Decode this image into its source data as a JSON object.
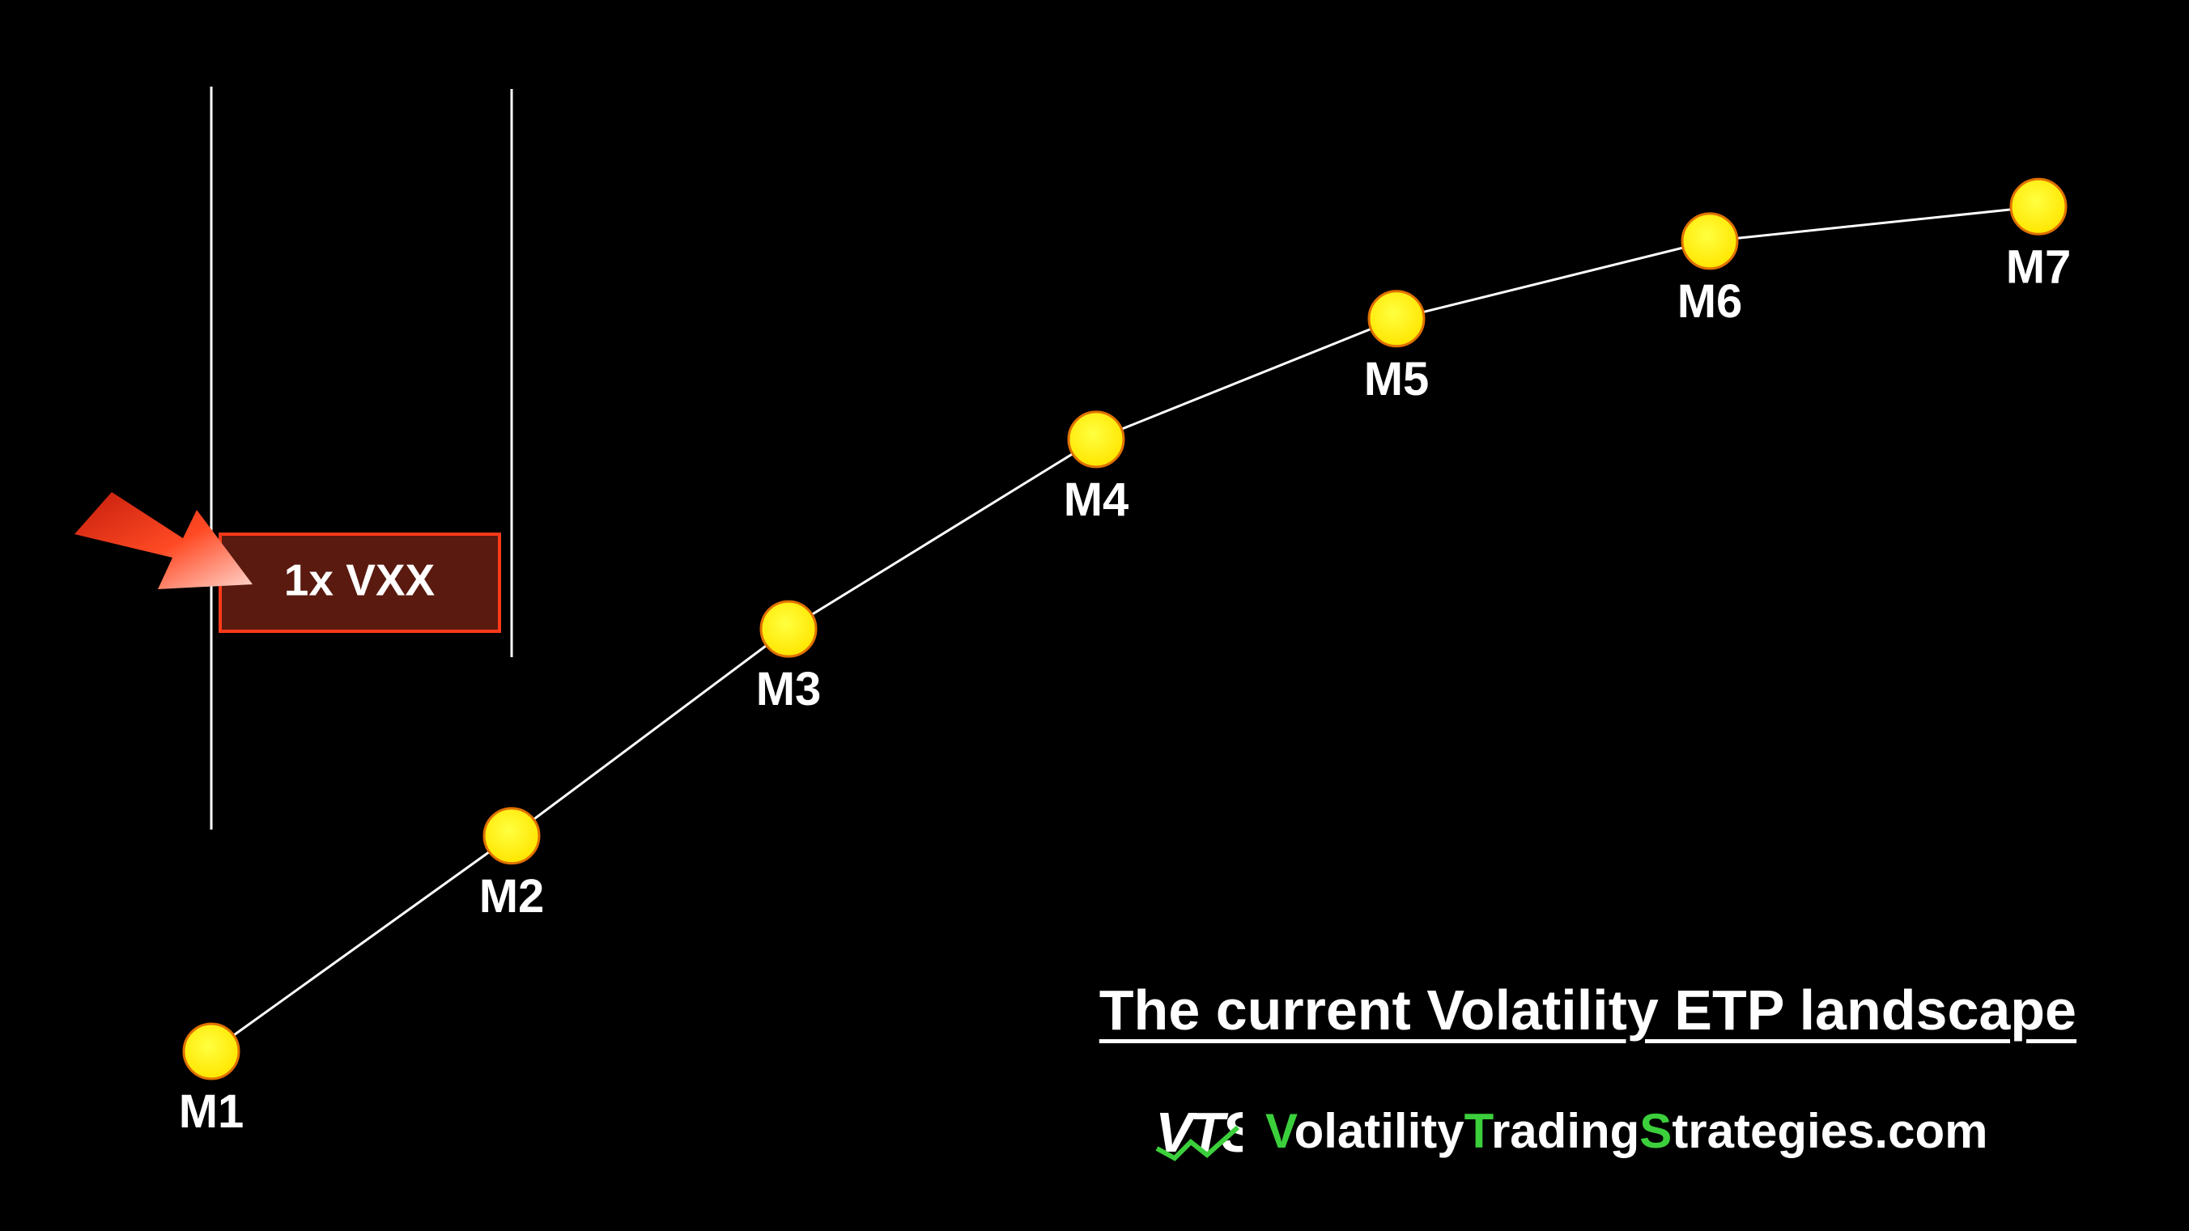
{
  "chart_data": {
    "type": "line",
    "categories": [
      "M1",
      "M2",
      "M3",
      "M4",
      "M5",
      "M6",
      "M7"
    ],
    "values": [
      20.0,
      32.5,
      44.5,
      55.5,
      62.5,
      67.0,
      69.0
    ],
    "ylim": [
      0,
      100
    ],
    "grid": false,
    "annotation": {
      "label": "1x VXX",
      "span": [
        "M1",
        "M2"
      ]
    },
    "colors": {
      "background": "#000000",
      "line": "#ffffff",
      "marker_fill": "#ffee00",
      "marker_stroke": "#e07000",
      "callout_fill": "#5a1a10",
      "callout_stroke": "#ff3a1a",
      "arrow": "#ff3b1f"
    }
  },
  "footer": {
    "title": "The current Volatility ETP landscape",
    "brand_logo": "VTS",
    "brand_parts": [
      {
        "text": "V",
        "highlight": true
      },
      {
        "text": "olatility",
        "highlight": false
      },
      {
        "text": "T",
        "highlight": true
      },
      {
        "text": "rading",
        "highlight": false
      },
      {
        "text": "S",
        "highlight": true
      },
      {
        "text": "trategies.com",
        "highlight": false
      }
    ]
  }
}
